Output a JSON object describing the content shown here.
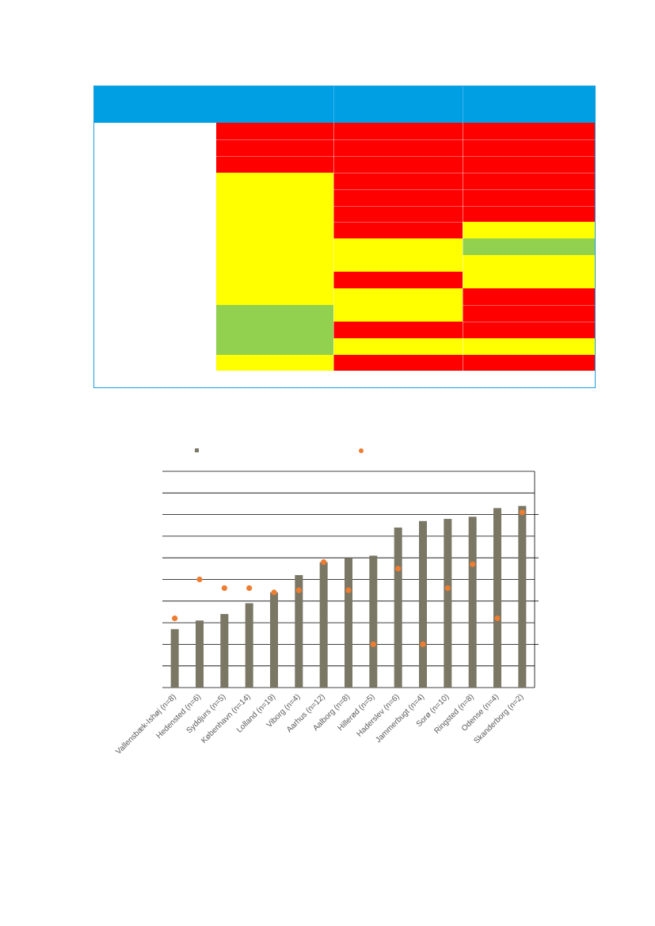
{
  "table": {
    "header_color": "#009fe3",
    "status_colors": {
      "R": "#ff0000",
      "Y": "#ffff00",
      "G": "#92d050"
    },
    "columns": [
      [
        "R",
        "R",
        "R",
        "Y",
        "Y",
        "Y",
        "Y",
        "Y",
        "Y",
        "Y",
        "Y",
        "G",
        "G",
        "G",
        "Y"
      ],
      [
        "R",
        "R",
        "R",
        "R",
        "R",
        "R",
        "R",
        "Y",
        "Y",
        "R",
        "Y",
        "Y",
        "R",
        "Y",
        "R"
      ],
      [
        "R",
        "R",
        "R",
        "R",
        "R",
        "R",
        "Y",
        "G",
        "Y",
        "Y",
        "R",
        "R",
        "R",
        "Y",
        "R"
      ]
    ]
  },
  "chart_data": {
    "type": "bar",
    "categories": [
      "Vallensbæk-Ishøj (n=8)",
      "Hedensted (n=6)",
      "Syddjurs (n=5)",
      "København (n=14)",
      "Lolland (n=19)",
      "Viborg (n=4)",
      "Aarhus (n=12)",
      "Aalborg  (n=8)",
      "Hillerød (n=5)",
      "Haderslev (n=6)",
      "Jammerbugt (n=4)",
      "Sorø  (n=10)",
      "Ringsted  (n=8)",
      "Odense (n=4)",
      "Skanderborg (n=2)"
    ],
    "series": [
      {
        "marker": "bar",
        "color": "#7a7765",
        "values": [
          2.7,
          3.1,
          3.4,
          3.9,
          4.4,
          5.2,
          5.8,
          6.0,
          6.1,
          7.4,
          7.7,
          7.8,
          7.9,
          8.3,
          8.4
        ]
      },
      {
        "marker": "dot",
        "color": "#ed7d31",
        "values": [
          2.6,
          3.5,
          3.3,
          3.3,
          3.2,
          3.25,
          3.9,
          3.25,
          2.0,
          3.75,
          2.0,
          3.3,
          3.85,
          2.6,
          5.05
        ]
      }
    ],
    "ylim_left": [
      0,
      10
    ],
    "ylim_right": [
      1,
      6
    ],
    "grid": true,
    "legend_position": "top"
  }
}
